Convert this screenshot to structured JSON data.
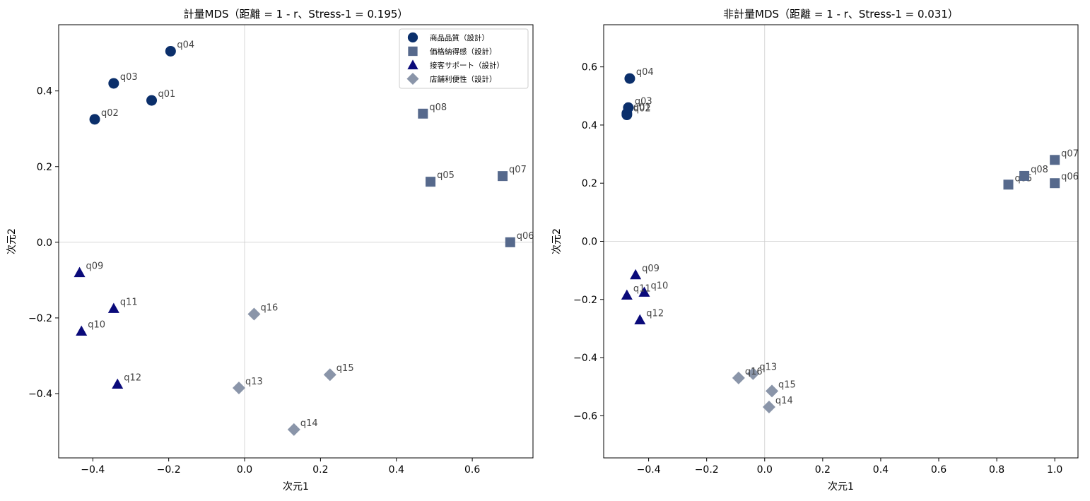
{
  "chart_data": [
    {
      "type": "scatter",
      "title": "計量MDS（距離 = 1 - r、Stress-1 = 0.195）",
      "xlabel": "次元1",
      "ylabel": "次元2",
      "xlim": [
        -0.49,
        0.76
      ],
      "ylim": [
        -0.57,
        0.575
      ],
      "xticks": [
        -0.4,
        -0.2,
        0.0,
        0.2,
        0.4,
        0.6
      ],
      "xtick_labels": [
        "−0.4",
        "−0.2",
        "0.0",
        "0.2",
        "0.4",
        "0.6"
      ],
      "yticks": [
        -0.4,
        -0.2,
        0.0,
        0.2,
        0.4
      ],
      "ytick_labels": [
        "−0.4",
        "−0.2",
        "0.0",
        "0.2",
        "0.4"
      ],
      "zero_lines": true,
      "legend_position": "top-right",
      "series": [
        {
          "name": "商品品質（設計）",
          "marker": "circle",
          "color": "#0b2f6b",
          "points": [
            {
              "label": "q01",
              "x": -0.245,
              "y": 0.375
            },
            {
              "label": "q02",
              "x": -0.395,
              "y": 0.325
            },
            {
              "label": "q03",
              "x": -0.345,
              "y": 0.42
            },
            {
              "label": "q04",
              "x": -0.195,
              "y": 0.505
            }
          ]
        },
        {
          "name": "価格納得感（設計）",
          "marker": "square",
          "color": "#56698c",
          "points": [
            {
              "label": "q05",
              "x": 0.49,
              "y": 0.16
            },
            {
              "label": "q06",
              "x": 0.7,
              "y": 0.0
            },
            {
              "label": "q07",
              "x": 0.68,
              "y": 0.175
            },
            {
              "label": "q08",
              "x": 0.47,
              "y": 0.34
            }
          ]
        },
        {
          "name": "接客サポート（設計）",
          "marker": "triangle",
          "color": "#0a0a7a",
          "points": [
            {
              "label": "q09",
              "x": -0.435,
              "y": -0.08
            },
            {
              "label": "q10",
              "x": -0.43,
              "y": -0.235
            },
            {
              "label": "q11",
              "x": -0.345,
              "y": -0.175
            },
            {
              "label": "q12",
              "x": -0.335,
              "y": -0.375
            }
          ]
        },
        {
          "name": "店舗利便性（設計）",
          "marker": "diamond",
          "color": "#8a95a9",
          "points": [
            {
              "label": "q13",
              "x": -0.015,
              "y": -0.385
            },
            {
              "label": "q14",
              "x": 0.13,
              "y": -0.495
            },
            {
              "label": "q15",
              "x": 0.225,
              "y": -0.35
            },
            {
              "label": "q16",
              "x": 0.025,
              "y": -0.19
            }
          ]
        }
      ]
    },
    {
      "type": "scatter",
      "title": "非計量MDS（距離 = 1 - r、Stress-1 = 0.031）",
      "xlabel": "次元1",
      "ylabel": "次元2",
      "xlim": [
        -0.555,
        1.08
      ],
      "ylim": [
        -0.745,
        0.745
      ],
      "xticks": [
        -0.4,
        -0.2,
        0.0,
        0.2,
        0.4,
        0.6,
        0.8,
        1.0
      ],
      "xtick_labels": [
        "−0.4",
        "−0.2",
        "0.0",
        "0.2",
        "0.4",
        "0.6",
        "0.8",
        "1.0"
      ],
      "yticks": [
        -0.6,
        -0.4,
        -0.2,
        0.0,
        0.2,
        0.4,
        0.6
      ],
      "ytick_labels": [
        "−0.6",
        "−0.4",
        "−0.2",
        "0.0",
        "0.2",
        "0.4",
        "0.6"
      ],
      "zero_lines": true,
      "series": [
        {
          "name": "商品品質（設計）",
          "marker": "circle",
          "color": "#0b2f6b",
          "points": [
            {
              "label": "q01",
              "x": -0.475,
              "y": 0.44
            },
            {
              "label": "q02",
              "x": -0.475,
              "y": 0.435
            },
            {
              "label": "q03",
              "x": -0.47,
              "y": 0.46
            },
            {
              "label": "q04",
              "x": -0.465,
              "y": 0.56
            }
          ]
        },
        {
          "name": "価格納得感（設計）",
          "marker": "square",
          "color": "#56698c",
          "points": [
            {
              "label": "q05",
              "x": 0.84,
              "y": 0.195
            },
            {
              "label": "q06",
              "x": 1.0,
              "y": 0.2
            },
            {
              "label": "q07",
              "x": 1.0,
              "y": 0.28
            },
            {
              "label": "q08",
              "x": 0.895,
              "y": 0.225
            }
          ]
        },
        {
          "name": "接客サポート（設計）",
          "marker": "triangle",
          "color": "#0a0a7a",
          "points": [
            {
              "label": "q09",
              "x": -0.445,
              "y": -0.115
            },
            {
              "label": "q10",
              "x": -0.415,
              "y": -0.175
            },
            {
              "label": "q11",
              "x": -0.475,
              "y": -0.185
            },
            {
              "label": "q12",
              "x": -0.43,
              "y": -0.27
            }
          ]
        },
        {
          "name": "店舗利便性（設計）",
          "marker": "diamond",
          "color": "#8a95a9",
          "points": [
            {
              "label": "q13",
              "x": -0.04,
              "y": -0.455
            },
            {
              "label": "q14",
              "x": 0.015,
              "y": -0.57
            },
            {
              "label": "q15",
              "x": 0.025,
              "y": -0.515
            },
            {
              "label": "q16",
              "x": -0.09,
              "y": -0.47
            }
          ]
        }
      ]
    }
  ]
}
